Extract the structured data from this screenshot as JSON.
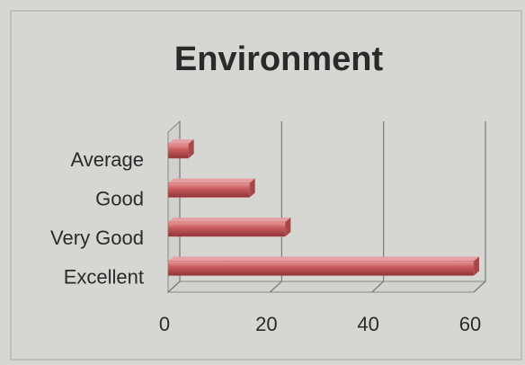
{
  "chart_data": {
    "type": "barh",
    "title": "Environment",
    "categories": [
      "Average",
      "Good",
      "Very Good",
      "Excellent"
    ],
    "values": [
      4,
      16,
      23,
      60
    ],
    "color": "#c95b5e",
    "xlim": [
      0,
      60
    ],
    "xticks": [
      0,
      20,
      40,
      60
    ],
    "grid": true
  }
}
